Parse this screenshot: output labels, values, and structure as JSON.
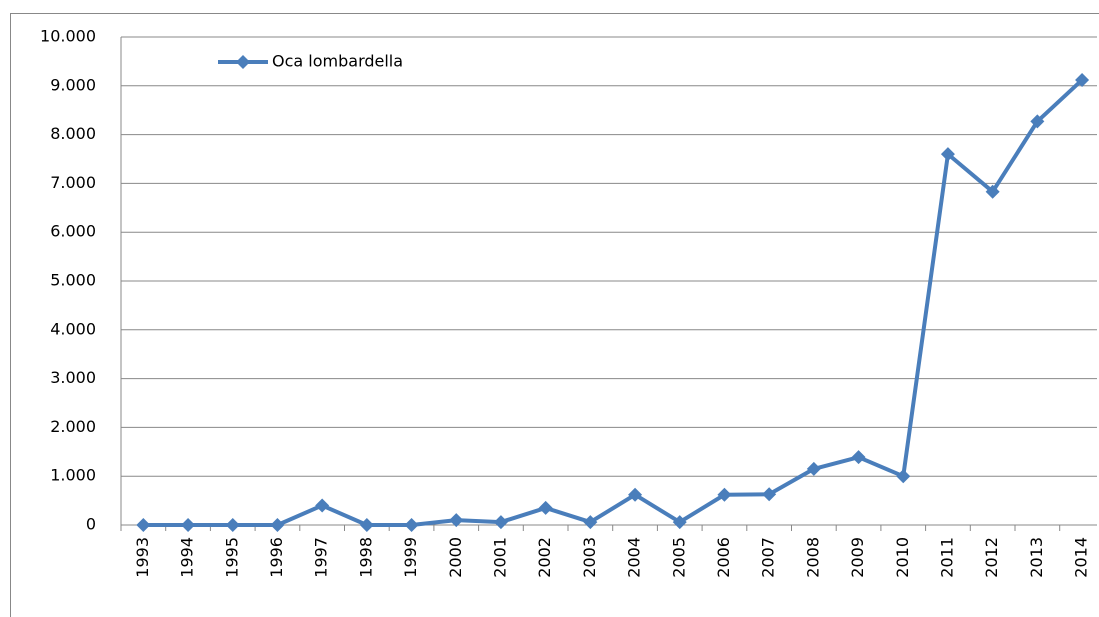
{
  "chart_data": {
    "type": "line",
    "categories": [
      "1993",
      "1994",
      "1995",
      "1996",
      "1997",
      "1998",
      "1999",
      "2000",
      "2001",
      "2002",
      "2003",
      "2004",
      "2005",
      "2006",
      "2007",
      "2008",
      "2009",
      "2010",
      "2011",
      "2012",
      "2013",
      "2014"
    ],
    "series": [
      {
        "name": "Oca lombardella",
        "color": "#4a7ebb",
        "values": [
          0,
          0,
          0,
          0,
          400,
          0,
          0,
          100,
          60,
          350,
          60,
          620,
          60,
          620,
          630,
          1150,
          1390,
          1000,
          7600,
          6830,
          8270,
          9120
        ]
      }
    ],
    "ylim": [
      0,
      10000
    ],
    "yticks": [
      0,
      {
        "value": 1000,
        "label": "1.000"
      },
      {
        "value": 2000,
        "label": "2.000"
      },
      {
        "value": 3000,
        "label": "3.000"
      },
      {
        "value": 4000,
        "label": "4.000"
      },
      {
        "value": 5000,
        "label": "5.000"
      },
      {
        "value": 6000,
        "label": "6.000"
      },
      {
        "value": 7000,
        "label": "7.000"
      },
      {
        "value": 8000,
        "label": "8.000"
      },
      {
        "value": 9000,
        "label": "9.000"
      },
      {
        "value": 10000,
        "label": "10.000"
      }
    ],
    "grid": true,
    "legend": "top-left"
  }
}
